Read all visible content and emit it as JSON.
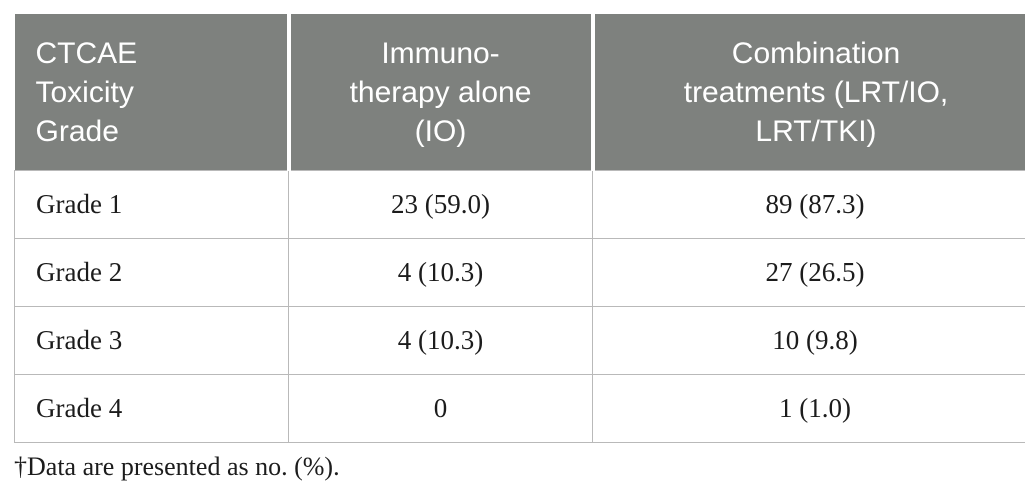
{
  "table": {
    "columns": [
      {
        "label": "CTCAE\nToxicity\nGrade"
      },
      {
        "label": "Immuno-\ntherapy alone\n(IO)"
      },
      {
        "label": "Combination\ntreatments (LRT/IO,\nLRT/TKI)"
      }
    ],
    "rows": [
      {
        "grade": "Grade 1",
        "io_alone": "23 (59.0)",
        "combination": "89 (87.3)"
      },
      {
        "grade": "Grade 2",
        "io_alone": "4 (10.3)",
        "combination": "27 (26.5)"
      },
      {
        "grade": "Grade 3",
        "io_alone": "4 (10.3)",
        "combination": "10 (9.8)"
      },
      {
        "grade": "Grade 4",
        "io_alone": "0",
        "combination": "1 (1.0)"
      }
    ],
    "footnote": "†Data are presented as no. (%)."
  },
  "colors": {
    "header_background": "#7e817e",
    "header_text": "#ffffff",
    "body_border": "#b9b9b9",
    "body_text": "#1c1c1c"
  }
}
